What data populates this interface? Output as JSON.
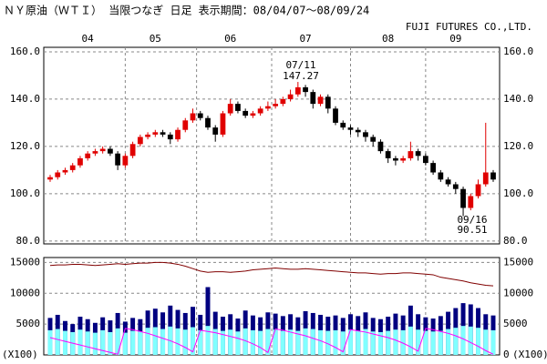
{
  "chart_data": [
    {
      "type": "candlestick",
      "title": "ＮＹ原油（ＷＴＩ） 当限つなぎ 日足 表示期間：08/04/07～08/09/24",
      "note": "FUJI FUTURES CO.,LTD.",
      "categories": [
        null,
        null,
        null,
        null,
        null,
        "04",
        null,
        null,
        null,
        null,
        null,
        null,
        null,
        null,
        "05",
        null,
        null,
        null,
        null,
        null,
        null,
        null,
        null,
        null,
        "06",
        null,
        null,
        null,
        null,
        null,
        null,
        null,
        null,
        null,
        "07",
        null,
        null,
        null,
        null,
        null,
        null,
        null,
        null,
        null,
        null,
        "08",
        null,
        null,
        null,
        null,
        null,
        null,
        null,
        null,
        "09",
        null,
        null,
        null,
        null,
        null
      ],
      "open": [
        106,
        107,
        109,
        110,
        112,
        115,
        117,
        118,
        119,
        117,
        112,
        116,
        121,
        124,
        125,
        126,
        125,
        123,
        127,
        131,
        134,
        132,
        128,
        125,
        134,
        138,
        135,
        133,
        134,
        136,
        137,
        138,
        140,
        142,
        145,
        143,
        138,
        141,
        136,
        130,
        128,
        127,
        126,
        124,
        122,
        118,
        115,
        114,
        115,
        118,
        116,
        113,
        109,
        106,
        104,
        102,
        94,
        99,
        104,
        109
      ],
      "high": [
        108,
        110,
        111,
        113,
        116,
        118,
        119,
        120,
        120,
        118,
        117,
        122,
        125,
        126,
        127,
        127,
        126,
        128,
        132,
        136,
        135,
        133,
        129,
        135,
        140,
        139,
        136,
        135,
        137,
        139,
        140,
        141,
        144,
        147.27,
        146,
        144,
        142,
        142,
        137,
        131,
        129,
        128,
        127,
        125,
        123,
        119,
        116,
        116,
        122,
        119,
        117,
        114,
        110,
        107,
        105,
        103,
        100,
        106,
        130,
        110
      ],
      "low": [
        105,
        106,
        108,
        109,
        111,
        114,
        116,
        117,
        116,
        110,
        111,
        115,
        120,
        123,
        124,
        124,
        121,
        122,
        126,
        130,
        131,
        127,
        122,
        124,
        133,
        134,
        132,
        132,
        133,
        135,
        136,
        137,
        139,
        141,
        141,
        136,
        137,
        134,
        129,
        127,
        125,
        124,
        122,
        120,
        117,
        113,
        112,
        113,
        114,
        114,
        112,
        108,
        105,
        103,
        100,
        90.51,
        93,
        98,
        103,
        105
      ],
      "close": [
        107,
        109,
        110,
        112,
        115,
        117,
        118,
        119,
        117,
        112,
        116,
        121,
        124,
        125,
        126,
        125,
        123,
        127,
        131,
        134,
        132,
        128,
        125,
        134,
        138,
        135,
        133,
        134,
        136,
        137,
        138,
        140,
        142,
        145,
        143,
        138,
        141,
        136,
        130,
        128,
        127,
        126,
        124,
        122,
        118,
        115,
        114,
        115,
        118,
        116,
        113,
        109,
        106,
        104,
        102,
        94,
        99,
        104,
        109,
        106
      ],
      "up_color": "#e00000",
      "down_color": "#000000",
      "ylim": [
        78.8,
        161.9
      ],
      "yticks": [
        {
          "value": 80,
          "label": "80.0"
        },
        {
          "value": 100,
          "label": "100.0"
        },
        {
          "value": 120,
          "label": "120.0"
        },
        {
          "value": 140,
          "label": "140.0"
        },
        {
          "value": 160,
          "label": "160.0"
        }
      ],
      "annotations": [
        "07/11",
        "147.27",
        "09/16",
        "90.51"
      ],
      "grid": true
    },
    {
      "type": "bar",
      "ylim": [
        0,
        15800
      ],
      "yticks": [
        5000,
        10000,
        15000
      ],
      "y2ticks": [
        0,
        5000,
        10000,
        15000
      ],
      "unit_label": "(X100)",
      "grid": true,
      "series": [
        {
          "type": "bar",
          "color": "#000080",
          "values": [
            6000,
            6500,
            5500,
            5000,
            6200,
            5800,
            5200,
            6100,
            5600,
            6800,
            5400,
            6000,
            5800,
            7200,
            7500,
            6900,
            8000,
            7300,
            6800,
            7800,
            6500,
            11000,
            7000,
            6200,
            6600,
            5900,
            7200,
            6400,
            6100,
            6900,
            6700,
            6300,
            6600,
            6100,
            7100,
            6800,
            6500,
            6200,
            6400,
            6000,
            6600,
            6300,
            6900,
            6000,
            5800,
            6200,
            6700,
            6400,
            8000,
            6600,
            6100,
            5900,
            6300,
            7000,
            7600,
            8400,
            8200,
            7600,
            6600,
            6400
          ]
        },
        {
          "type": "bar",
          "color": "#80ffff",
          "values": [
            4000,
            4200,
            3900,
            3700,
            4100,
            3800,
            3600,
            4000,
            3700,
            4300,
            3600,
            3900,
            3800,
            4400,
            4500,
            4200,
            4600,
            4300,
            4100,
            4500,
            4000,
            4700,
            4200,
            3900,
            4100,
            3800,
            4300,
            4000,
            3900,
            4200,
            4100,
            3900,
            4100,
            3900,
            4300,
            4200,
            4000,
            3900,
            4000,
            3800,
            4100,
            3900,
            4200,
            3800,
            3700,
            3900,
            4100,
            4000,
            4600,
            4100,
            3900,
            3800,
            3900,
            4200,
            4400,
            4700,
            4600,
            4400,
            4100,
            4000
          ]
        },
        {
          "type": "line",
          "color": "#800000",
          "values": [
            14500,
            14600,
            14600,
            14700,
            14700,
            14600,
            14500,
            14600,
            14700,
            14800,
            14700,
            14800,
            14900,
            14900,
            15000,
            15000,
            14900,
            14700,
            14400,
            14000,
            13600,
            13400,
            13500,
            13500,
            13400,
            13500,
            13600,
            13800,
            13900,
            14000,
            14100,
            14000,
            13900,
            13900,
            14000,
            13900,
            13800,
            13700,
            13600,
            13500,
            13400,
            13300,
            13300,
            13200,
            13100,
            13200,
            13200,
            13300,
            13300,
            13200,
            13100,
            13000,
            12600,
            12400,
            12200,
            12000,
            11700,
            11500,
            11300,
            11200
          ]
        },
        {
          "type": "line",
          "color": "#ff00ff",
          "values": [
            2800,
            2500,
            2200,
            1900,
            1600,
            1300,
            1000,
            700,
            400,
            100,
            4300,
            4100,
            3800,
            3500,
            3100,
            2700,
            2300,
            1800,
            1200,
            500,
            4000,
            3800,
            3600,
            3300,
            3000,
            2700,
            2300,
            1800,
            1200,
            400,
            4200,
            4000,
            3700,
            3400,
            3100,
            2700,
            2300,
            1800,
            1200,
            500,
            4100,
            3900,
            3700,
            3400,
            3100,
            2800,
            2400,
            1900,
            1300,
            600,
            4300,
            4100,
            3800,
            3500,
            3100,
            2600,
            2000,
            1400,
            700,
            100
          ]
        }
      ]
    }
  ]
}
